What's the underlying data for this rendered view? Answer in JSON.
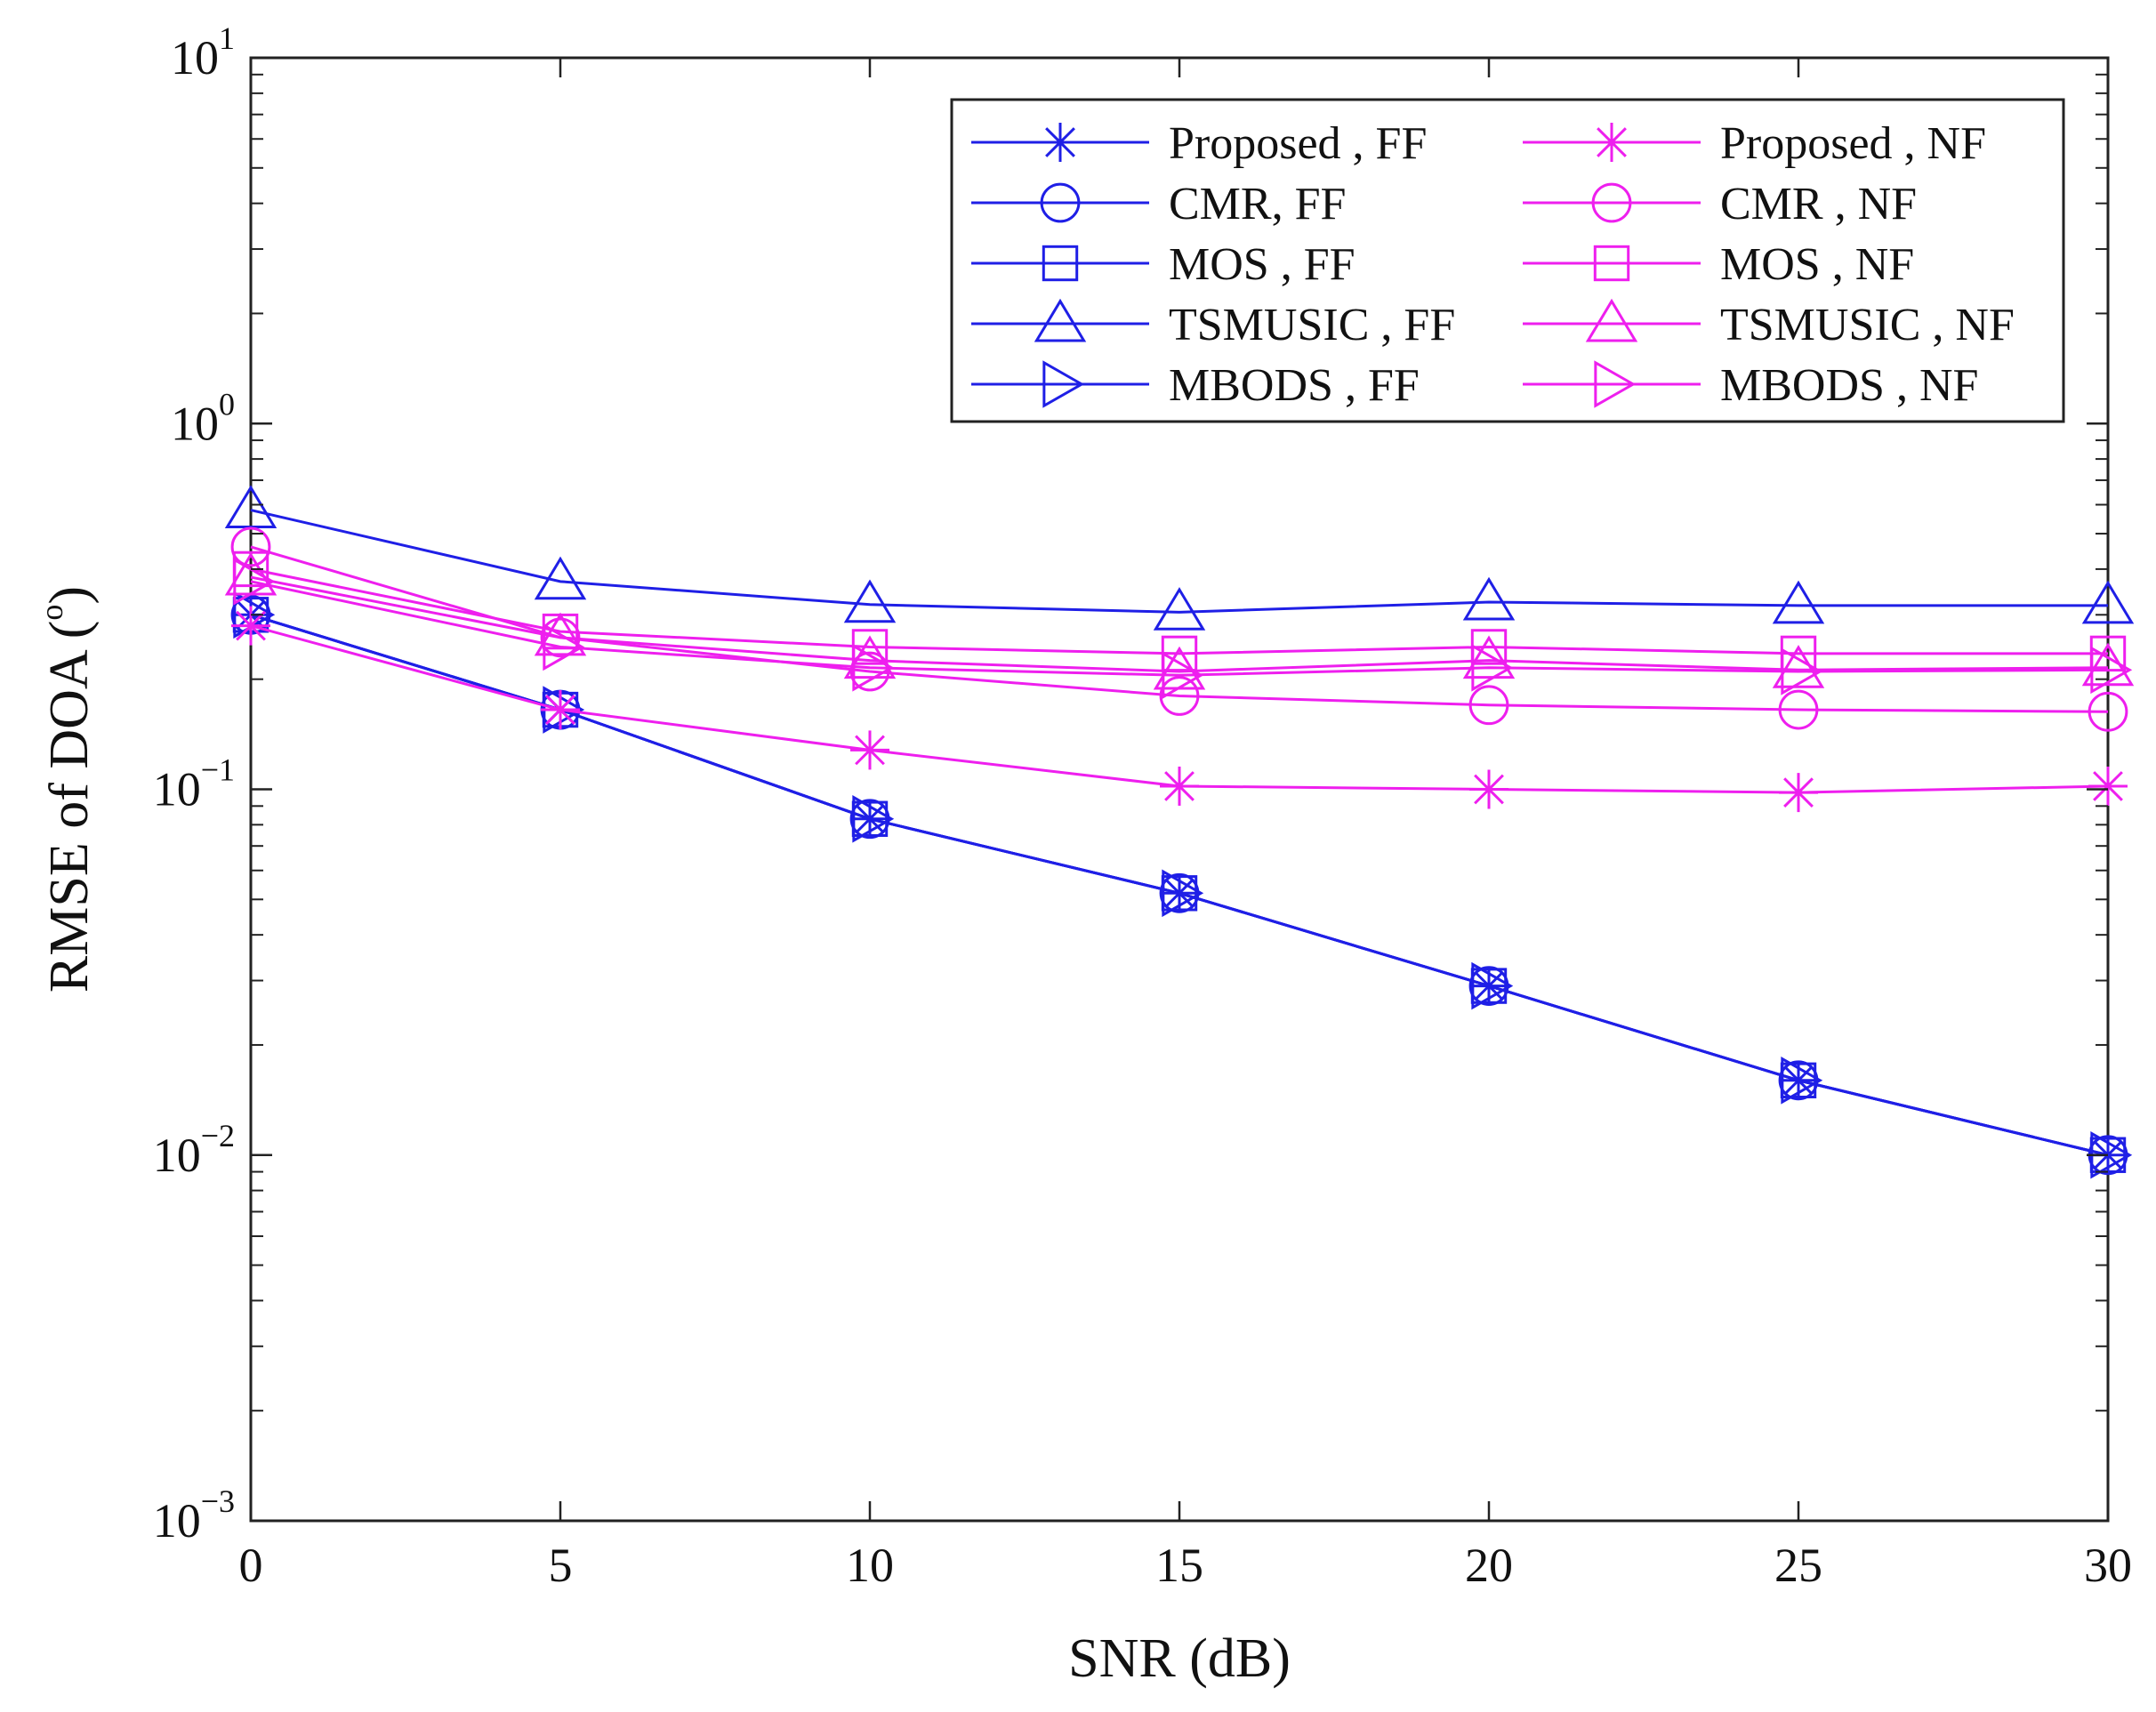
{
  "chart_data": {
    "type": "line",
    "title": "",
    "xlabel": "SNR (dB)",
    "ylabel": "RMSE  of  DOA (°)",
    "ylabel_parts": {
      "main": "RMSE  of  DOA (",
      "sup": "o",
      "end": ")"
    },
    "x": [
      0,
      5,
      10,
      15,
      20,
      25,
      30
    ],
    "xlim": [
      0,
      30
    ],
    "ylim": [
      0.001,
      10
    ],
    "yscale": "log",
    "xticks": [
      0,
      5,
      10,
      15,
      20,
      25,
      30
    ],
    "yticks": [
      {
        "value": 10,
        "base": "10",
        "exp": "1"
      },
      {
        "value": 1,
        "base": "10",
        "exp": "0"
      },
      {
        "value": 0.1,
        "base": "10",
        "exp": "−1"
      },
      {
        "value": 0.01,
        "base": "10",
        "exp": "−2"
      },
      {
        "value": 0.001,
        "base": "10",
        "exp": "−3"
      }
    ],
    "grid": false,
    "legend_position": "top-right",
    "legend_columns": 2,
    "series": [
      {
        "name": "Proposed , FF",
        "color": "#1f1fe6",
        "marker": "star",
        "values": [
          0.3,
          0.165,
          0.083,
          0.052,
          0.029,
          0.016,
          0.01
        ]
      },
      {
        "name": "CMR, FF",
        "color": "#1f1fe6",
        "marker": "circle",
        "values": [
          0.3,
          0.165,
          0.083,
          0.052,
          0.029,
          0.016,
          0.01
        ]
      },
      {
        "name": "MOS , FF",
        "color": "#1f1fe6",
        "marker": "square",
        "values": [
          0.3,
          0.165,
          0.083,
          0.052,
          0.029,
          0.016,
          0.01
        ]
      },
      {
        "name": "TSMUSIC , FF",
        "color": "#1f1fe6",
        "marker": "triangle-up",
        "values": [
          0.58,
          0.37,
          0.32,
          0.305,
          0.325,
          0.318,
          0.318
        ]
      },
      {
        "name": "MBODS , FF",
        "color": "#1f1fe6",
        "marker": "triangle-right",
        "values": [
          0.3,
          0.165,
          0.083,
          0.052,
          0.029,
          0.016,
          0.01
        ]
      },
      {
        "name": "Proposed , NF",
        "color": "#ee1fee",
        "marker": "star",
        "values": [
          0.28,
          0.165,
          0.128,
          0.102,
          0.1,
          0.098,
          0.102
        ]
      },
      {
        "name": "CMR , NF",
        "color": "#ee1fee",
        "marker": "circle",
        "values": [
          0.46,
          0.26,
          0.21,
          0.18,
          0.17,
          0.165,
          0.163
        ]
      },
      {
        "name": "MOS , NF",
        "color": "#ee1fee",
        "marker": "square",
        "values": [
          0.4,
          0.27,
          0.245,
          0.235,
          0.245,
          0.235,
          0.235
        ]
      },
      {
        "name": "TSMUSIC , NF",
        "color": "#ee1fee",
        "marker": "triangle-up",
        "values": [
          0.38,
          0.26,
          0.225,
          0.21,
          0.225,
          0.212,
          0.215
        ]
      },
      {
        "name": "MBODS , NF",
        "color": "#ee1fee",
        "marker": "triangle-right",
        "values": [
          0.37,
          0.245,
          0.215,
          0.205,
          0.215,
          0.21,
          0.212
        ]
      }
    ]
  }
}
